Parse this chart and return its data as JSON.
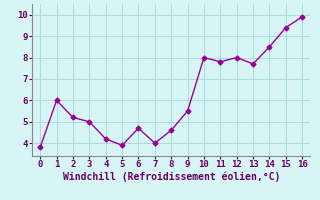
{
  "x": [
    0,
    1,
    2,
    3,
    4,
    5,
    6,
    7,
    8,
    9,
    10,
    11,
    12,
    13,
    14,
    15,
    16
  ],
  "y": [
    3.8,
    6.0,
    5.2,
    5.0,
    4.2,
    3.9,
    4.7,
    4.0,
    4.6,
    5.5,
    8.0,
    7.8,
    8.0,
    7.7,
    8.5,
    9.4,
    9.9
  ],
  "xlabel": "Windchill (Refroidissement éolien,°C)",
  "ylabel": "",
  "xlim": [
    -0.5,
    16.5
  ],
  "ylim": [
    3.4,
    10.5
  ],
  "yticks": [
    4,
    5,
    6,
    7,
    8,
    9,
    10
  ],
  "xticks": [
    0,
    1,
    2,
    3,
    4,
    5,
    6,
    7,
    8,
    9,
    10,
    11,
    12,
    13,
    14,
    15,
    16
  ],
  "line_color": "#990099",
  "marker": "D",
  "marker_size": 2.5,
  "line_width": 1.0,
  "bg_color": "#d8f5f5",
  "grid_color": "#aadddd",
  "xlabel_fontsize": 7.0,
  "tick_fontsize": 6.5,
  "tick_color": "#660066"
}
